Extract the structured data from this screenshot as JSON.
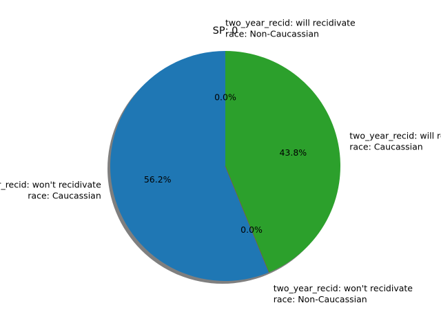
{
  "chart_data": {
    "type": "pie",
    "title": "SP: 0",
    "labels": [
      [
        "two_year_recid: will recidivate",
        "race: Non-Caucassian"
      ],
      [
        "two_year_recid: won't recidivate",
        "race: Caucassian"
      ],
      [
        "two_year_recid: won't recidivate",
        "race: Non-Caucassian"
      ],
      [
        "two_year_recid: will recidivate",
        "race: Caucassian"
      ]
    ],
    "values": [
      0.0,
      56.2,
      0.0,
      43.8
    ],
    "pct_labels": [
      "0.0%",
      "56.2%",
      "0.0%",
      "43.8%"
    ],
    "colors": [
      "#ff7f0e",
      "#1f77b4",
      "#d62728",
      "#2ca02c"
    ],
    "start_angle": 90,
    "counterclockwise": true,
    "shadow": true,
    "legend": "none"
  }
}
